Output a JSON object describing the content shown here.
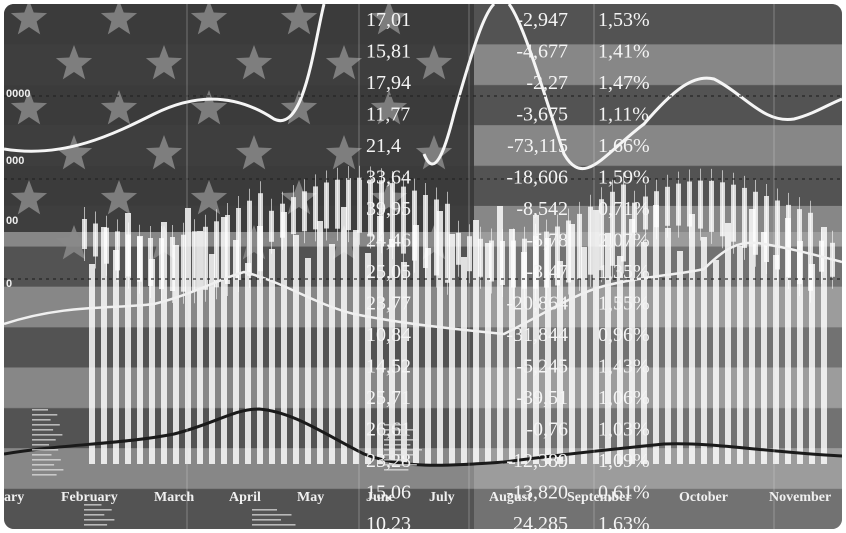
{
  "months": [
    "ary",
    "February",
    "March",
    "April",
    "May",
    "June",
    "July",
    "August",
    "September",
    "October",
    "November"
  ],
  "columns": {
    "values": [
      "17,01",
      "15,81",
      "17,94",
      "11,77",
      "21,4",
      "33,64",
      "39,95",
      "24,46",
      "25,05",
      "23,77",
      "10,84",
      "14,52",
      "25,71",
      "26,61",
      "23,28",
      "15,06",
      "10,23"
    ],
    "changes": [
      "-2,947",
      "-4,677",
      "-2,27",
      "-3,675",
      "-73,115",
      "-18,606",
      "-8,542",
      "-5,78",
      "-3,47",
      "-20,864",
      "-31,844",
      "-5,245",
      "-39,51",
      "-0,76",
      "-12,389",
      "-13,820",
      "24,285"
    ],
    "percents": [
      "1,53%",
      "1,41%",
      "1,47%",
      "1,11%",
      "1,66%",
      "1,59%",
      "0,71%",
      "2,07%",
      "1,35%",
      "1,55%",
      "0,96%",
      "1,43%",
      "1,06%",
      "1,03%",
      "1,09%",
      "0,61%",
      "1,63%"
    ]
  },
  "axis_labels": [
    "0000",
    "000",
    "00",
    "0"
  ],
  "colors": {
    "background": "#4d4d4d",
    "stripe_light": "#b8b8b8",
    "stripe_dark": "#5a5a5a",
    "canton": "#3a3a3a",
    "star": "#8a8a8a",
    "text": "#f4f4f4"
  }
}
